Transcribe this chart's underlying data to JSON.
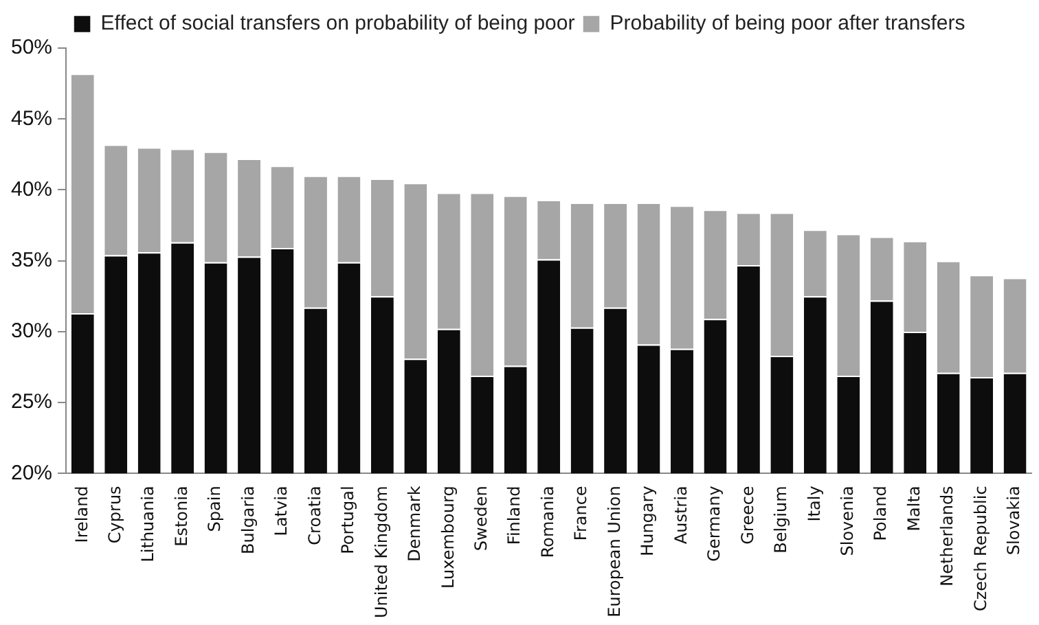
{
  "chart_data": {
    "type": "bar",
    "legend": "top",
    "grid": false,
    "categories": [
      "Ireland",
      "Cyprus",
      "Lithuania",
      "Estonia",
      "Spain",
      "Bulgaria",
      "Latvia",
      "Croatia",
      "Portugal",
      "United Kingdom",
      "Denmark",
      "Luxembourg",
      "Sweden",
      "Finland",
      "Romania",
      "France",
      "European Union",
      "Hungary",
      "Austria",
      "Germany",
      "Greece",
      "Belgium",
      "Italy",
      "Slovenia",
      "Poland",
      "Malta",
      "Netherlands",
      "Czech Republic",
      "Slovakia"
    ],
    "series": [
      {
        "name": "Probability of being poor after transfers",
        "color": "#a6a6a6",
        "base": [
          31.3,
          35.4,
          35.6,
          36.3,
          34.9,
          35.3,
          35.9,
          31.7,
          34.9,
          32.5,
          28.1,
          30.2,
          26.9,
          27.6,
          35.1,
          30.3,
          31.7,
          29.1,
          28.8,
          30.9,
          34.7,
          28.3,
          32.5,
          26.9,
          32.2,
          30.0,
          27.1,
          26.8,
          27.1
        ],
        "values": [
          16.9,
          7.8,
          7.4,
          6.6,
          7.8,
          6.9,
          5.8,
          9.3,
          6.1,
          8.3,
          12.4,
          9.6,
          12.9,
          12.0,
          4.2,
          8.8,
          7.4,
          10.0,
          10.1,
          7.7,
          3.7,
          10.1,
          4.7,
          10.0,
          4.5,
          6.4,
          7.9,
          7.2,
          6.7
        ]
      },
      {
        "name": "Effect of social transfers on probability of being poor",
        "color": "#0d0d0d",
        "values": [
          31.3,
          35.4,
          35.6,
          36.3,
          34.9,
          35.3,
          35.9,
          31.7,
          34.9,
          32.5,
          28.1,
          30.2,
          26.9,
          27.6,
          35.1,
          30.3,
          31.7,
          29.1,
          28.8,
          30.9,
          34.7,
          28.3,
          32.5,
          26.9,
          32.2,
          30.0,
          27.1,
          26.8,
          27.1
        ]
      }
    ],
    "ylim": [
      20,
      50
    ],
    "yticks": [
      {
        "value": 20,
        "label": "20%"
      },
      {
        "value": 25,
        "label": "25%"
      },
      {
        "value": 30,
        "label": "30%"
      },
      {
        "value": 35,
        "label": "35%"
      },
      {
        "value": 40,
        "label": "40%"
      },
      {
        "value": 45,
        "label": "45%"
      },
      {
        "value": 50,
        "label": "50%"
      }
    ]
  }
}
